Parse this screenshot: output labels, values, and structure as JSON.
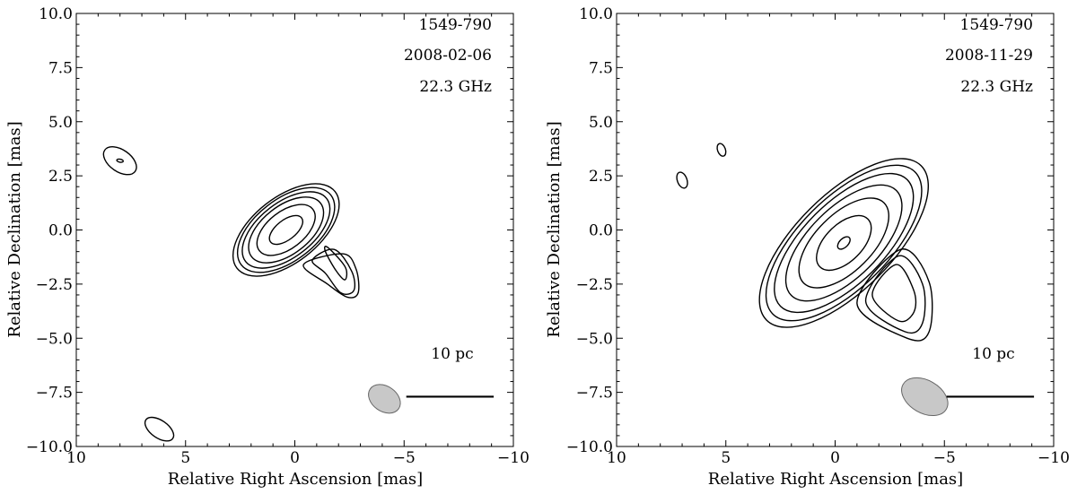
{
  "chart_data": [
    {
      "type": "contour",
      "annotations": [
        "1549-790",
        "2008-02-06",
        "22.3 GHz"
      ],
      "xlabel": "Relative Right Ascension [mas]",
      "ylabel": "Relative Declination [mas]",
      "xlim": [
        10,
        -10
      ],
      "ylim": [
        -10,
        10
      ],
      "xticks": [
        10,
        5,
        0,
        -5,
        -10
      ],
      "xtick_labels": [
        "10",
        "5",
        "0",
        "−5",
        "−10"
      ],
      "yticks": [
        10,
        7.5,
        5,
        2.5,
        0,
        -2.5,
        -5,
        -7.5,
        -10
      ],
      "ytick_labels": [
        "10.0",
        "7.5",
        "5.0",
        "2.5",
        "0.0",
        "−2.5",
        "−5.0",
        "−7.5",
        "−10.0"
      ],
      "scale_bar": {
        "label": "10 pc",
        "x_start": -5.1,
        "x_end": -9.1,
        "y": -7.7
      },
      "beam": {
        "cx": -4.1,
        "cy": -7.8,
        "major": 1.6,
        "minor": 1.15,
        "pa_deg": 55,
        "color": "#c8c8c8"
      },
      "core_contours": {
        "cx": 0.4,
        "cy": 0.0,
        "angle_deg": -38,
        "semi_major": [
          0.9,
          1.55,
          2.0,
          2.35,
          2.6,
          2.85
        ],
        "semi_minor": [
          0.45,
          0.85,
          1.1,
          1.25,
          1.4,
          1.5
        ]
      },
      "extra_contours": [
        [
          [
            -1.5,
            -0.8
          ],
          [
            -2.3,
            -1.7
          ],
          [
            -2.3,
            -2.3
          ],
          [
            -1.9,
            -1.9
          ],
          [
            -1.4,
            -1.0
          ]
        ],
        [
          [
            -1.8,
            -0.9
          ],
          [
            -2.6,
            -1.9
          ],
          [
            -2.7,
            -2.8
          ],
          [
            -2.1,
            -2.9
          ],
          [
            -1.4,
            -2.0
          ],
          [
            -0.8,
            -1.4
          ]
        ],
        [
          [
            -2.2,
            -1.1
          ],
          [
            -2.8,
            -1.8
          ],
          [
            -2.9,
            -2.9
          ],
          [
            -2.4,
            -3.1
          ],
          [
            -1.5,
            -2.5
          ],
          [
            -0.4,
            -1.6
          ]
        ]
      ],
      "islands": [
        {
          "cx": 8.0,
          "cy": 3.2,
          "rx": 0.85,
          "ry": 0.5,
          "angle_deg": 35
        },
        {
          "cx": 8.0,
          "cy": 3.2,
          "rx": 0.15,
          "ry": 0.07,
          "angle_deg": 10
        },
        {
          "cx": 6.2,
          "cy": -9.2,
          "rx": 0.75,
          "ry": 0.4,
          "angle_deg": 35
        }
      ]
    },
    {
      "type": "contour",
      "annotations": [
        "1549-790",
        "2008-11-29",
        "22.3 GHz"
      ],
      "xlabel": "Relative Right Ascension [mas]",
      "ylabel": "Relative Declination [mas]",
      "xlim": [
        10,
        -10
      ],
      "ylim": [
        -10,
        10
      ],
      "xticks": [
        10,
        5,
        0,
        -5,
        -10
      ],
      "xtick_labels": [
        "10",
        "5",
        "0",
        "−5",
        "−10"
      ],
      "yticks": [
        10,
        7.5,
        5,
        2.5,
        0,
        -2.5,
        -5,
        -7.5,
        -10
      ],
      "ytick_labels": [
        "10.0",
        "7.5",
        "5.0",
        "2.5",
        "0.0",
        "−2.5",
        "−5.0",
        "−7.5",
        "−10.0"
      ],
      "scale_bar": {
        "label": "10 pc",
        "x_start": -5.1,
        "x_end": -9.1,
        "y": -7.7
      },
      "beam": {
        "cx": -4.1,
        "cy": -7.7,
        "major": 2.3,
        "minor": 1.5,
        "pa_deg": 60,
        "color": "#c8c8c8"
      },
      "core_contours": {
        "cx": -0.4,
        "cy": -0.6,
        "angle_deg": -45,
        "semi_major": [
          0.35,
          1.55,
          2.6,
          3.4,
          4.1,
          4.6,
          5.0
        ],
        "semi_minor": [
          0.2,
          0.85,
          1.3,
          1.6,
          1.85,
          2.05,
          2.2
        ]
      },
      "extra_contours": [
        [
          [
            -2.8,
            -1.6
          ],
          [
            -3.6,
            -2.8
          ],
          [
            -3.6,
            -3.8
          ],
          [
            -2.9,
            -4.2
          ],
          [
            -1.7,
            -3.0
          ]
        ],
        [
          [
            -2.9,
            -1.2
          ],
          [
            -4.0,
            -2.5
          ],
          [
            -4.0,
            -4.3
          ],
          [
            -3.2,
            -4.7
          ],
          [
            -1.4,
            -3.3
          ]
        ],
        [
          [
            -3.0,
            -0.9
          ],
          [
            -4.3,
            -2.4
          ],
          [
            -4.3,
            -4.7
          ],
          [
            -3.3,
            -5.0
          ],
          [
            -1.0,
            -3.4
          ]
        ]
      ],
      "islands": [
        {
          "cx": 7.0,
          "cy": 2.3,
          "rx": 0.38,
          "ry": 0.22,
          "angle_deg": 70
        },
        {
          "cx": 5.2,
          "cy": 3.7,
          "rx": 0.3,
          "ry": 0.18,
          "angle_deg": 70
        }
      ]
    }
  ]
}
